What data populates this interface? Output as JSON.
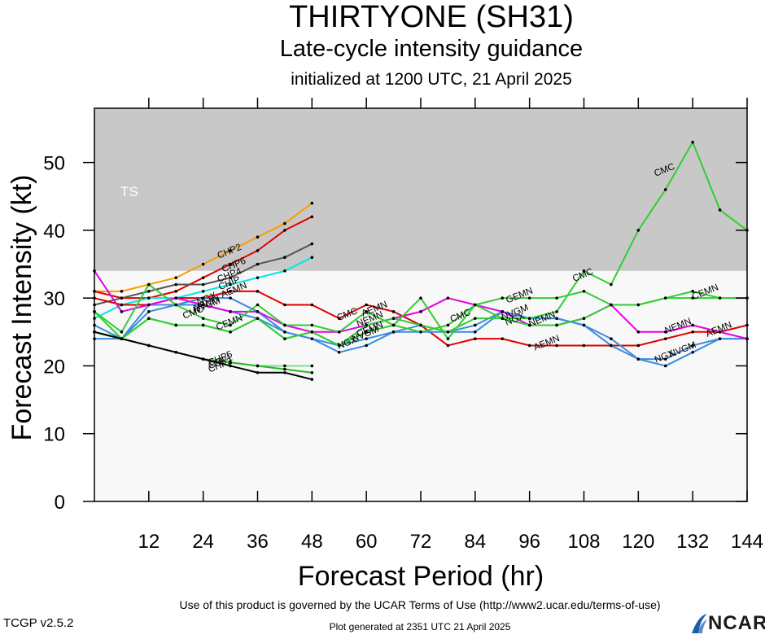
{
  "header": {
    "title": "THIRTYONE (SH31)",
    "subtitle": "Late-cycle intensity guidance",
    "init": "initialized at 1200 UTC, 21 April 2025"
  },
  "footer": {
    "terms": "Use of this product is governed by the UCAR Terms of Use (http://www2.ucar.edu/terms-of-use)",
    "generated": "Plot generated at 2351 UTC   21 April 2025",
    "version": "TCGP v2.5.2",
    "logo": "NCAR"
  },
  "chart_data": {
    "type": "line",
    "xlabel": "Forecast Period (hr)",
    "ylabel": "Forecast Intensity (kt)",
    "xlim": [
      0,
      144
    ],
    "ylim": [
      0,
      58
    ],
    "xticks": [
      12,
      24,
      36,
      48,
      60,
      72,
      84,
      96,
      108,
      120,
      132,
      144
    ],
    "yticks": [
      0,
      10,
      20,
      30,
      40,
      50
    ],
    "bands": [
      {
        "label": "TS",
        "from": 34,
        "to": 58,
        "color": "#c8c8c8"
      },
      {
        "label": "",
        "from": 0,
        "to": 34,
        "color": "#f8f8f8"
      }
    ],
    "series": [
      {
        "name": "CHP2",
        "color": "#f5a000",
        "x": [
          0,
          6,
          12,
          18,
          24,
          30,
          36,
          42,
          48
        ],
        "y": [
          31,
          31,
          32,
          33,
          35,
          37,
          39,
          41,
          44
        ],
        "label_x": 30,
        "label_y": 36.5
      },
      {
        "name": "CHP6",
        "color": "#e00000",
        "x": [
          0,
          6,
          12,
          18,
          24,
          30,
          36,
          42,
          48
        ],
        "y": [
          31,
          30,
          30,
          31,
          33,
          35,
          37,
          40,
          42
        ],
        "label_x": 31,
        "label_y": 34.5
      },
      {
        "name": "CHP4",
        "color": "#555555",
        "x": [
          0,
          6,
          12,
          18,
          24,
          30,
          36,
          42,
          48
        ],
        "y": [
          29,
          30,
          31,
          32,
          32,
          33,
          35,
          36,
          38
        ],
        "label_x": 30,
        "label_y": 33
      },
      {
        "name": "CHIP",
        "color": "#00e6e6",
        "x": [
          0,
          6,
          12,
          18,
          24,
          30,
          36,
          42,
          48
        ],
        "y": [
          27,
          29,
          30,
          30,
          31,
          32,
          33,
          34,
          36
        ],
        "label_x": 30,
        "label_y": 31.8
      },
      {
        "name": "AEMN",
        "color": "#e00000",
        "x": [
          0,
          6,
          12,
          18,
          24,
          30,
          36,
          42,
          48,
          54,
          60,
          66,
          72,
          78,
          84,
          90,
          96,
          102,
          108,
          114,
          120,
          126,
          132,
          138,
          144
        ],
        "y": [
          30,
          29,
          29,
          30,
          30,
          31,
          31,
          29,
          29,
          27,
          29,
          28,
          26,
          23,
          24,
          24,
          23,
          23,
          23,
          23,
          23,
          24,
          25,
          25,
          26
        ],
        "label_x": 31,
        "label_y": 30.8
      },
      {
        "name": "NGX",
        "color": "#3c8cdc",
        "x": [
          0,
          6,
          12,
          18,
          24,
          30,
          36,
          42,
          48,
          54,
          60,
          66,
          72,
          78,
          84,
          90,
          96,
          102,
          108,
          114,
          120,
          126,
          132,
          138,
          144
        ],
        "y": [
          24,
          24,
          29,
          29,
          29,
          28,
          27,
          25,
          24,
          22,
          23,
          25,
          25,
          25,
          25,
          28,
          27,
          27,
          26,
          23,
          21,
          20,
          22,
          24,
          24
        ],
        "label_x": 25,
        "label_y": 29.5
      },
      {
        "name": "NVGM",
        "color": "#3c8cdc",
        "x": [
          0,
          6,
          12,
          18,
          24,
          30,
          36,
          42,
          48,
          54,
          60,
          66,
          72,
          78,
          84,
          90,
          96,
          102,
          108,
          114,
          120,
          126,
          132,
          138,
          144
        ],
        "y": [
          26,
          24,
          28,
          29,
          30,
          30,
          28,
          25,
          24,
          23,
          24,
          25,
          26,
          25,
          26,
          28,
          27,
          27,
          26,
          24,
          21,
          21,
          23,
          24,
          24
        ],
        "label_x": 25,
        "label_y": 28.5
      },
      {
        "name": "NEMN",
        "color": "#e600e6",
        "x": [
          0,
          6,
          12,
          18,
          24,
          30,
          36,
          42,
          48,
          54,
          60,
          66,
          72,
          78,
          84,
          90,
          96,
          102,
          108,
          114,
          120,
          126,
          132,
          138,
          144
        ],
        "y": [
          34,
          28,
          29,
          30,
          29,
          28,
          28,
          26,
          25,
          25,
          26,
          27,
          28,
          30,
          29,
          28,
          26,
          26,
          27,
          29,
          25,
          25,
          26,
          25,
          24
        ],
        "label_x": 25,
        "label_y": 28.8
      },
      {
        "name": "CMC",
        "color": "#33cc33",
        "x": [
          0,
          6,
          12,
          18,
          24,
          30,
          36,
          42,
          48,
          54,
          60,
          66,
          72,
          78,
          84,
          90,
          96,
          102,
          108,
          114,
          120,
          126,
          132,
          138,
          144
        ],
        "y": [
          28,
          25,
          32,
          29,
          27,
          26,
          29,
          26,
          26,
          25,
          28,
          26,
          30,
          24,
          29,
          27,
          27,
          28,
          34,
          32,
          40,
          46,
          53,
          43,
          40
        ],
        "label_x": 22,
        "label_y": 27.5
      },
      {
        "name": "GEMN",
        "color": "#33cc33",
        "x": [
          0,
          6,
          12,
          18,
          24,
          30,
          36,
          42,
          48,
          54,
          60,
          66,
          72,
          78,
          84,
          90,
          96,
          102,
          108,
          114,
          120,
          126,
          132,
          138,
          144
        ],
        "y": [
          25,
          24,
          27,
          26,
          26,
          25,
          27,
          24,
          25,
          23,
          25,
          26,
          25,
          26,
          29,
          30,
          30,
          30,
          31,
          29,
          29,
          30,
          31,
          30,
          30
        ],
        "label_x": 94,
        "label_y": 30
      },
      {
        "name": "CEMN",
        "color": "#33cc33",
        "x": [
          0,
          6,
          12,
          18,
          24,
          30,
          36,
          42,
          48,
          54,
          60,
          66,
          72,
          78,
          84,
          90,
          96,
          102,
          108,
          114,
          120,
          126,
          132,
          138,
          144
        ],
        "y": [
          28,
          24,
          27,
          26,
          26,
          25,
          27,
          24,
          25,
          23,
          26,
          27,
          26,
          25,
          27,
          27,
          26,
          26,
          27,
          29,
          29,
          30,
          30,
          30,
          30
        ],
        "label_x": 30,
        "label_y": 26
      },
      {
        "name": "CHP5",
        "color": "#88d898",
        "x": [
          0,
          6,
          12,
          18,
          24,
          30,
          36,
          42,
          48
        ],
        "y": [
          25,
          24,
          23,
          22,
          21,
          20.5,
          20,
          20,
          20
        ],
        "label_x": 28,
        "label_y": 20.7
      },
      {
        "name": "CHP1",
        "color": "#22bb22",
        "x": [
          0,
          6,
          12,
          18,
          24,
          30,
          36,
          42,
          48
        ],
        "y": [
          25,
          24,
          23,
          22,
          21,
          20.5,
          20,
          19.5,
          19
        ],
        "label_x": 28,
        "label_y": 20.2
      },
      {
        "name": "CHP3",
        "color": "#000000",
        "x": [
          0,
          6,
          12,
          18,
          24,
          30,
          36,
          42,
          48
        ],
        "y": [
          25,
          24,
          23,
          22,
          21,
          20,
          19,
          19,
          18
        ],
        "label_x": 28,
        "label_y": 19.7
      }
    ],
    "extra_labels": [
      {
        "text": "CMC",
        "x": 56,
        "y": 27.2
      },
      {
        "text": "AEMN",
        "x": 62,
        "y": 28
      },
      {
        "text": "NEMN",
        "x": 61,
        "y": 26.5
      },
      {
        "text": "CEMN",
        "x": 61,
        "y": 25
      },
      {
        "text": "NGX",
        "x": 56,
        "y": 23
      },
      {
        "text": "NVGM",
        "x": 60,
        "y": 24.3
      },
      {
        "text": "CMC",
        "x": 81,
        "y": 27
      },
      {
        "text": "NVGM",
        "x": 93,
        "y": 27.5
      },
      {
        "text": "NGX",
        "x": 93,
        "y": 26.5
      },
      {
        "text": "NEMN",
        "x": 99,
        "y": 26.5
      },
      {
        "text": "AEMN",
        "x": 100,
        "y": 23
      },
      {
        "text": "CMC",
        "x": 108,
        "y": 33
      },
      {
        "text": "CMC",
        "x": 126,
        "y": 48.5
      },
      {
        "text": "NGX",
        "x": 126,
        "y": 21
      },
      {
        "text": "NVGM",
        "x": 130,
        "y": 22
      },
      {
        "text": "NEMN",
        "x": 129,
        "y": 25.5
      },
      {
        "text": "AEMN",
        "x": 138,
        "y": 25
      },
      {
        "text": "CEMN",
        "x": 135,
        "y": 30.5
      }
    ]
  }
}
